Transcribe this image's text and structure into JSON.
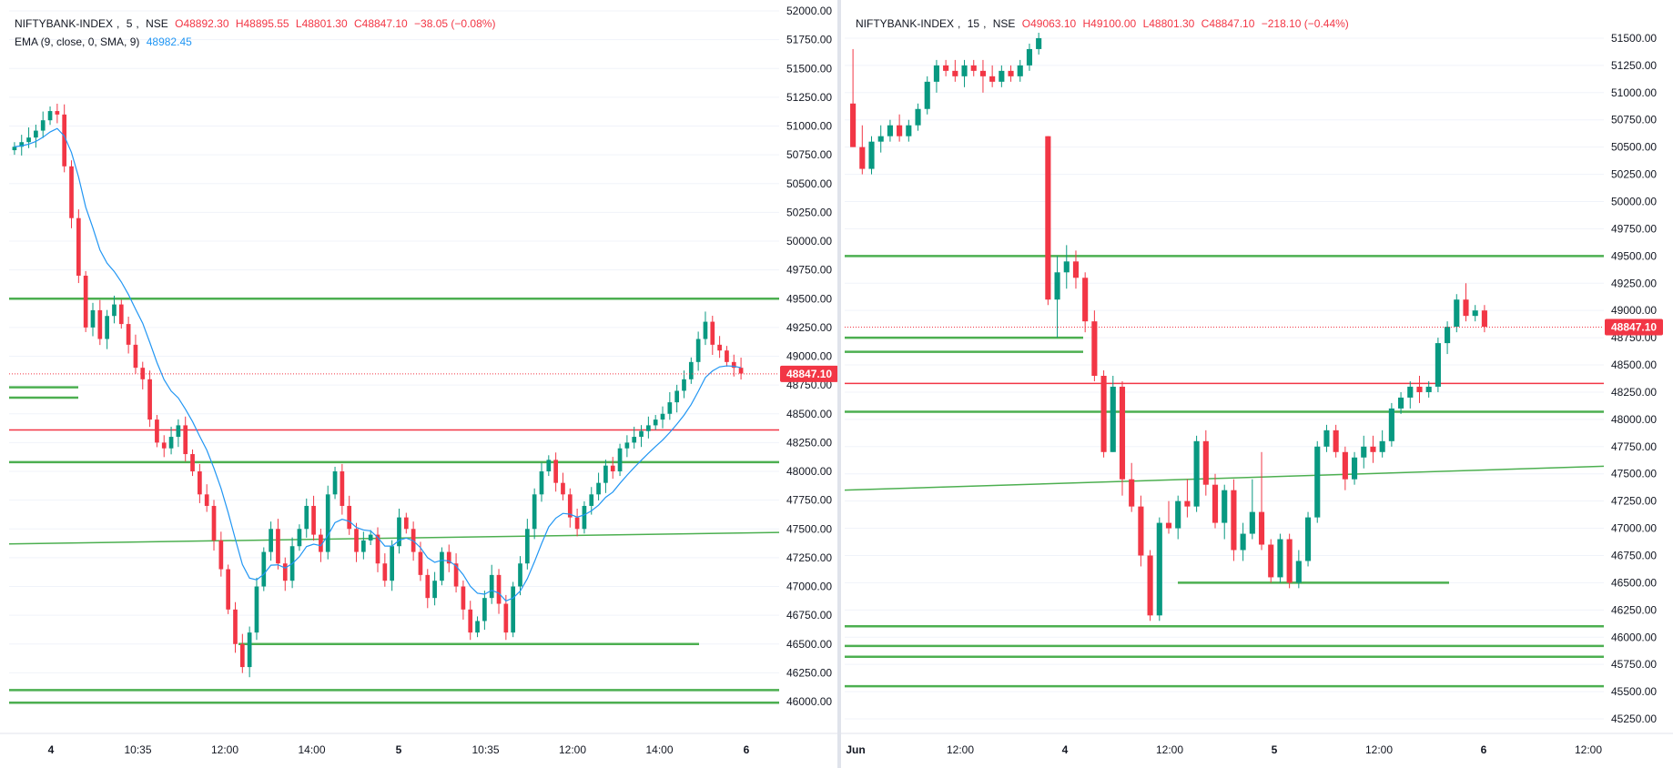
{
  "chart_data": [
    {
      "type": "candlestick",
      "symbol": "NIFTYBANK-INDEX",
      "interval": "5",
      "exchange": "NSE",
      "ohlc": {
        "O": "O48892.30",
        "H": "H48895.55",
        "L": "L48801.30",
        "C": "C48847.10",
        "change": "−38.05 (−0.08%)"
      },
      "indicator": {
        "label": "EMA (9, close, 0, SMA, 9)",
        "value": "48982.45"
      },
      "last_price": "48847.10",
      "ylim": [
        45850,
        52000
      ],
      "y_ticks": [
        "52000.00",
        "51750.00",
        "51500.00",
        "51250.00",
        "51000.00",
        "50750.00",
        "50500.00",
        "50250.00",
        "50000.00",
        "49750.00",
        "49500.00",
        "49250.00",
        "49000.00",
        "48750.00",
        "48500.00",
        "48250.00",
        "48000.00",
        "47750.00",
        "47500.00",
        "47250.00",
        "47000.00",
        "46750.00",
        "46500.00",
        "46250.00",
        "46000.00"
      ],
      "x_ticks": [
        "4",
        "10:35",
        "12:00",
        "14:00",
        "5",
        "10:35",
        "12:00",
        "14:00",
        "6"
      ],
      "horizontal_levels": [
        {
          "price": 49500,
          "color": "#4caf50",
          "extent": "full"
        },
        {
          "price": 48730,
          "color": "#4caf50",
          "extent": "short"
        },
        {
          "price": 48640,
          "color": "#4caf50",
          "extent": "short"
        },
        {
          "price": 48360,
          "color": "#f23645",
          "extent": "full"
        },
        {
          "price": 48080,
          "color": "#4caf50",
          "extent": "full"
        },
        {
          "price": 46500,
          "color": "#4caf50",
          "extent": "segment"
        },
        {
          "price": 46100,
          "color": "#4caf50",
          "extent": "full"
        },
        {
          "price": 45990,
          "color": "#4caf50",
          "extent": "full"
        }
      ],
      "trend_line": {
        "from": 47370,
        "to": 47470,
        "color": "#4caf50"
      },
      "candles_close": [
        50820,
        50860,
        50900,
        50960,
        51050,
        51130,
        51100,
        50650,
        50200,
        49700,
        49250,
        49400,
        49150,
        49350,
        49450,
        49280,
        49100,
        48900,
        48800,
        48450,
        48250,
        48200,
        48300,
        48400,
        48150,
        48000,
        47800,
        47700,
        47400,
        47150,
        46800,
        46500,
        46300,
        46600,
        47000,
        47300,
        47500,
        47200,
        47050,
        47350,
        47500,
        47700,
        47450,
        47300,
        47800,
        48000,
        47700,
        47500,
        47300,
        47400,
        47450,
        47200,
        47050,
        47350,
        47600,
        47500,
        47300,
        47100,
        46900,
        47050,
        47300,
        47200,
        47000,
        46800,
        46600,
        46700,
        46900,
        47100,
        46850,
        46600,
        47000,
        47200,
        47500,
        47800,
        48000,
        48100,
        47900,
        47800,
        47600,
        47500,
        47700,
        47800,
        47900,
        48050,
        48000,
        48200,
        48250,
        48300,
        48350,
        48400,
        48450,
        48500,
        48600,
        48700,
        48800,
        48950,
        49150,
        49300,
        49100,
        49050,
        48950,
        48900,
        48850
      ]
    },
    {
      "type": "candlestick",
      "symbol": "NIFTYBANK-INDEX",
      "interval": "15",
      "exchange": "NSE",
      "ohlc": {
        "O": "O49063.10",
        "H": "H49100.00",
        "L": "L48801.30",
        "C": "C48847.10",
        "change": "−218.10 (−0.44%)"
      },
      "last_price": "48847.10",
      "ylim": [
        45150,
        51650
      ],
      "y_ticks": [
        "51500.00",
        "51250.00",
        "51000.00",
        "50750.00",
        "50500.00",
        "50250.00",
        "50000.00",
        "49750.00",
        "49500.00",
        "49250.00",
        "49000.00",
        "48750.00",
        "48500.00",
        "48250.00",
        "48000.00",
        "47750.00",
        "47500.00",
        "47250.00",
        "47000.00",
        "46750.00",
        "46500.00",
        "46250.00",
        "46000.00",
        "45750.00",
        "45500.00",
        "45250.00"
      ],
      "x_ticks": [
        "Jun",
        "12:00",
        "4",
        "12:00",
        "5",
        "12:00",
        "6",
        "12:00"
      ],
      "horizontal_levels": [
        {
          "price": 49500,
          "color": "#4caf50",
          "extent": "full"
        },
        {
          "price": 48750,
          "color": "#4caf50",
          "extent": "short"
        },
        {
          "price": 48620,
          "color": "#4caf50",
          "extent": "short"
        },
        {
          "price": 48330,
          "color": "#f23645",
          "extent": "full"
        },
        {
          "price": 48070,
          "color": "#4caf50",
          "extent": "full"
        },
        {
          "price": 46500,
          "color": "#4caf50",
          "extent": "segment"
        },
        {
          "price": 46100,
          "color": "#4caf50",
          "extent": "full"
        },
        {
          "price": 45920,
          "color": "#4caf50",
          "extent": "full"
        },
        {
          "price": 45820,
          "color": "#4caf50",
          "extent": "full"
        },
        {
          "price": 45550,
          "color": "#4caf50",
          "extent": "full"
        }
      ],
      "trend_line": {
        "from": 47350,
        "to": 47570,
        "color": "#4caf50"
      },
      "candles": [
        {
          "o": 50900,
          "h": 51400,
          "l": 50500,
          "c": 50500
        },
        {
          "o": 50500,
          "h": 50700,
          "l": 50250,
          "c": 50300
        },
        {
          "o": 50300,
          "h": 50600,
          "l": 50250,
          "c": 50550
        },
        {
          "o": 50550,
          "h": 50700,
          "l": 50450,
          "c": 50600
        },
        {
          "o": 50600,
          "h": 50750,
          "l": 50550,
          "c": 50700
        },
        {
          "o": 50700,
          "h": 50800,
          "l": 50550,
          "c": 50600
        },
        {
          "o": 50600,
          "h": 50750,
          "l": 50550,
          "c": 50700
        },
        {
          "o": 50700,
          "h": 50900,
          "l": 50650,
          "c": 50850
        },
        {
          "o": 50850,
          "h": 51150,
          "l": 50800,
          "c": 51100
        },
        {
          "o": 51100,
          "h": 51300,
          "l": 51000,
          "c": 51250
        },
        {
          "o": 51250,
          "h": 51300,
          "l": 51150,
          "c": 51200
        },
        {
          "o": 51200,
          "h": 51300,
          "l": 51100,
          "c": 51150
        },
        {
          "o": 51150,
          "h": 51300,
          "l": 51050,
          "c": 51250
        },
        {
          "o": 51250,
          "h": 51300,
          "l": 51150,
          "c": 51200
        },
        {
          "o": 51200,
          "h": 51300,
          "l": 51000,
          "c": 51150
        },
        {
          "o": 51150,
          "h": 51250,
          "l": 51050,
          "c": 51100
        },
        {
          "o": 51100,
          "h": 51250,
          "l": 51050,
          "c": 51200
        },
        {
          "o": 51200,
          "h": 51250,
          "l": 51100,
          "c": 51150
        },
        {
          "o": 51150,
          "h": 51300,
          "l": 51100,
          "c": 51250
        },
        {
          "o": 51250,
          "h": 51450,
          "l": 51200,
          "c": 51400
        },
        {
          "o": 51400,
          "h": 51550,
          "l": 51350,
          "c": 51500
        },
        {
          "o": 50600,
          "h": 50600,
          "l": 49050,
          "c": 49100
        },
        {
          "o": 49100,
          "h": 49500,
          "l": 48750,
          "c": 49350
        },
        {
          "o": 49350,
          "h": 49600,
          "l": 49200,
          "c": 49450
        },
        {
          "o": 49450,
          "h": 49550,
          "l": 49200,
          "c": 49300
        },
        {
          "o": 49300,
          "h": 49350,
          "l": 48800,
          "c": 48900
        },
        {
          "o": 48900,
          "h": 49000,
          "l": 48350,
          "c": 48400
        },
        {
          "o": 48400,
          "h": 48450,
          "l": 47650,
          "c": 47700
        },
        {
          "o": 47700,
          "h": 48400,
          "l": 47700,
          "c": 48300
        },
        {
          "o": 48300,
          "h": 48350,
          "l": 47300,
          "c": 47450
        },
        {
          "o": 47450,
          "h": 47600,
          "l": 47150,
          "c": 47200
        },
        {
          "o": 47200,
          "h": 47300,
          "l": 46650,
          "c": 46750
        },
        {
          "o": 46750,
          "h": 46800,
          "l": 46150,
          "c": 46200
        },
        {
          "o": 46200,
          "h": 47100,
          "l": 46150,
          "c": 47050
        },
        {
          "o": 47050,
          "h": 47250,
          "l": 46950,
          "c": 47000
        },
        {
          "o": 47000,
          "h": 47300,
          "l": 46900,
          "c": 47250
        },
        {
          "o": 47250,
          "h": 47450,
          "l": 47100,
          "c": 47200
        },
        {
          "o": 47200,
          "h": 47850,
          "l": 47150,
          "c": 47800
        },
        {
          "o": 47800,
          "h": 47900,
          "l": 47300,
          "c": 47400
        },
        {
          "o": 47400,
          "h": 47500,
          "l": 47000,
          "c": 47050
        },
        {
          "o": 47050,
          "h": 47400,
          "l": 46900,
          "c": 47350
        },
        {
          "o": 47350,
          "h": 47450,
          "l": 46700,
          "c": 46800
        },
        {
          "o": 46800,
          "h": 47050,
          "l": 46700,
          "c": 46950
        },
        {
          "o": 46950,
          "h": 47450,
          "l": 46900,
          "c": 47150
        },
        {
          "o": 47150,
          "h": 47700,
          "l": 46800,
          "c": 46850
        },
        {
          "o": 46850,
          "h": 46900,
          "l": 46500,
          "c": 46550
        },
        {
          "o": 46550,
          "h": 46950,
          "l": 46500,
          "c": 46900
        },
        {
          "o": 46900,
          "h": 46950,
          "l": 46450,
          "c": 46500
        },
        {
          "o": 46500,
          "h": 46800,
          "l": 46450,
          "c": 46700
        },
        {
          "o": 46700,
          "h": 47150,
          "l": 46650,
          "c": 47100
        },
        {
          "o": 47100,
          "h": 47800,
          "l": 47050,
          "c": 47750
        },
        {
          "o": 47750,
          "h": 47950,
          "l": 47700,
          "c": 47900
        },
        {
          "o": 47900,
          "h": 47950,
          "l": 47650,
          "c": 47700
        },
        {
          "o": 47700,
          "h": 47750,
          "l": 47350,
          "c": 47450
        },
        {
          "o": 47450,
          "h": 47700,
          "l": 47400,
          "c": 47650
        },
        {
          "o": 47650,
          "h": 47850,
          "l": 47550,
          "c": 47750
        },
        {
          "o": 47750,
          "h": 47850,
          "l": 47600,
          "c": 47700
        },
        {
          "o": 47700,
          "h": 47900,
          "l": 47650,
          "c": 47800
        },
        {
          "o": 47800,
          "h": 48150,
          "l": 47750,
          "c": 48100
        },
        {
          "o": 48100,
          "h": 48250,
          "l": 48050,
          "c": 48200
        },
        {
          "o": 48200,
          "h": 48350,
          "l": 48100,
          "c": 48300
        },
        {
          "o": 48300,
          "h": 48400,
          "l": 48150,
          "c": 48250
        },
        {
          "o": 48250,
          "h": 48350,
          "l": 48200,
          "c": 48300
        },
        {
          "o": 48300,
          "h": 48750,
          "l": 48250,
          "c": 48700
        },
        {
          "o": 48700,
          "h": 48900,
          "l": 48600,
          "c": 48850
        },
        {
          "o": 48850,
          "h": 49150,
          "l": 48800,
          "c": 49100
        },
        {
          "o": 49100,
          "h": 49250,
          "l": 48900,
          "c": 48950
        },
        {
          "o": 48950,
          "h": 49050,
          "l": 48900,
          "c": 49000
        },
        {
          "o": 49000,
          "h": 49050,
          "l": 48800,
          "c": 48850
        }
      ]
    }
  ],
  "colors": {
    "up": "#089981",
    "down": "#f23645",
    "ema": "#2196f3",
    "level": "#4caf50",
    "grid": "#f0f3fa",
    "axis_text": "#131722"
  }
}
